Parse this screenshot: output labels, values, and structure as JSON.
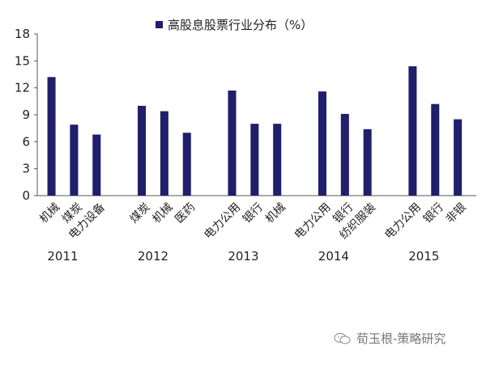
{
  "chart_data": {
    "type": "bar",
    "legend": {
      "label": "高股息股票行业分布（%）",
      "color": "#1f1f6b",
      "placement": "top"
    },
    "ylim": [
      0,
      18
    ],
    "yticks": [
      0,
      3,
      6,
      9,
      12,
      15,
      18
    ],
    "grid": false,
    "groups": [
      {
        "year": "2011",
        "bars": [
          {
            "category": "机械",
            "value": 13.2
          },
          {
            "category": "煤炭",
            "value": 7.9
          },
          {
            "category": "电力设备",
            "value": 6.8
          }
        ]
      },
      {
        "year": "2012",
        "bars": [
          {
            "category": "煤炭",
            "value": 10.0
          },
          {
            "category": "机械",
            "value": 9.4
          },
          {
            "category": "医药",
            "value": 7.0
          }
        ]
      },
      {
        "year": "2013",
        "bars": [
          {
            "category": "电力公用",
            "value": 11.7
          },
          {
            "category": "银行",
            "value": 8.0
          },
          {
            "category": "机械",
            "value": 8.0
          }
        ]
      },
      {
        "year": "2014",
        "bars": [
          {
            "category": "电力公用",
            "value": 11.6
          },
          {
            "category": "银行",
            "value": 9.1
          },
          {
            "category": "纺织服装",
            "value": 7.4
          }
        ]
      },
      {
        "year": "2015",
        "bars": [
          {
            "category": "电力公用",
            "value": 14.4
          },
          {
            "category": "银行",
            "value": 10.2
          },
          {
            "category": "非银",
            "value": 8.5
          }
        ]
      }
    ]
  },
  "watermark": {
    "text": "荀玉根-策略研究"
  }
}
